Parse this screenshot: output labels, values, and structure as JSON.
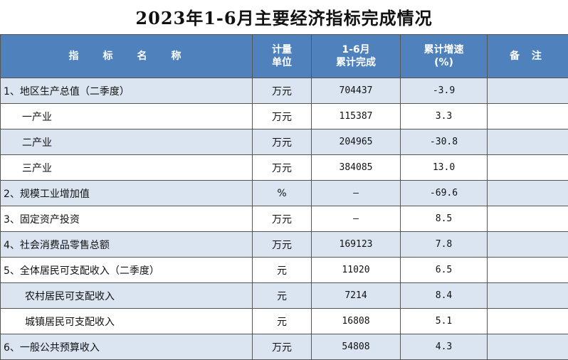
{
  "title": "2023年1-6月主要经济指标完成情况",
  "header": {
    "name": "指标名称",
    "unit_line1": "计量",
    "unit_line2": "单位",
    "value_line1": "1-6月",
    "value_line2": "累计完成",
    "growth_line1": "累计增速",
    "growth_line2": "(%)",
    "note": "备 注"
  },
  "rows": [
    {
      "name": "1、地区生产总值（二季度）",
      "unit": "万元",
      "value": "704437",
      "growth": "-3.9",
      "note": ""
    },
    {
      "name": "一产业",
      "unit": "万元",
      "value": "115387",
      "growth": "3.3",
      "note": ""
    },
    {
      "name": "二产业",
      "unit": "万元",
      "value": "204965",
      "growth": "-30.8",
      "note": ""
    },
    {
      "name": "三产业",
      "unit": "万元",
      "value": "384085",
      "growth": "13.0",
      "note": ""
    },
    {
      "name": "2、规模工业增加值",
      "unit": "%",
      "value": "—",
      "growth": "-69.6",
      "note": ""
    },
    {
      "name": "3、固定资产投资",
      "unit": "万元",
      "value": "—",
      "growth": "8.5",
      "note": ""
    },
    {
      "name": "4、社会消费品零售总额",
      "unit": "万元",
      "value": "169123",
      "growth": "7.8",
      "note": ""
    },
    {
      "name": "5、全体居民可支配收入（二季度）",
      "unit": "元",
      "value": "11020",
      "growth": "6.5",
      "note": ""
    },
    {
      "name": "农村居民可支配收入",
      "unit": "元",
      "value": "7214",
      "growth": "8.4",
      "note": ""
    },
    {
      "name": "城镇居民可支配收入",
      "unit": "元",
      "value": "16808",
      "growth": "5.1",
      "note": ""
    },
    {
      "name": "6、一般公共预算收入",
      "unit": "万元",
      "value": "54808",
      "growth": "4.3",
      "note": ""
    }
  ],
  "colors": {
    "header_bg": "#4f81bd",
    "alt_row_bg": "#dbe5f1",
    "header_text": "#ffffff"
  }
}
